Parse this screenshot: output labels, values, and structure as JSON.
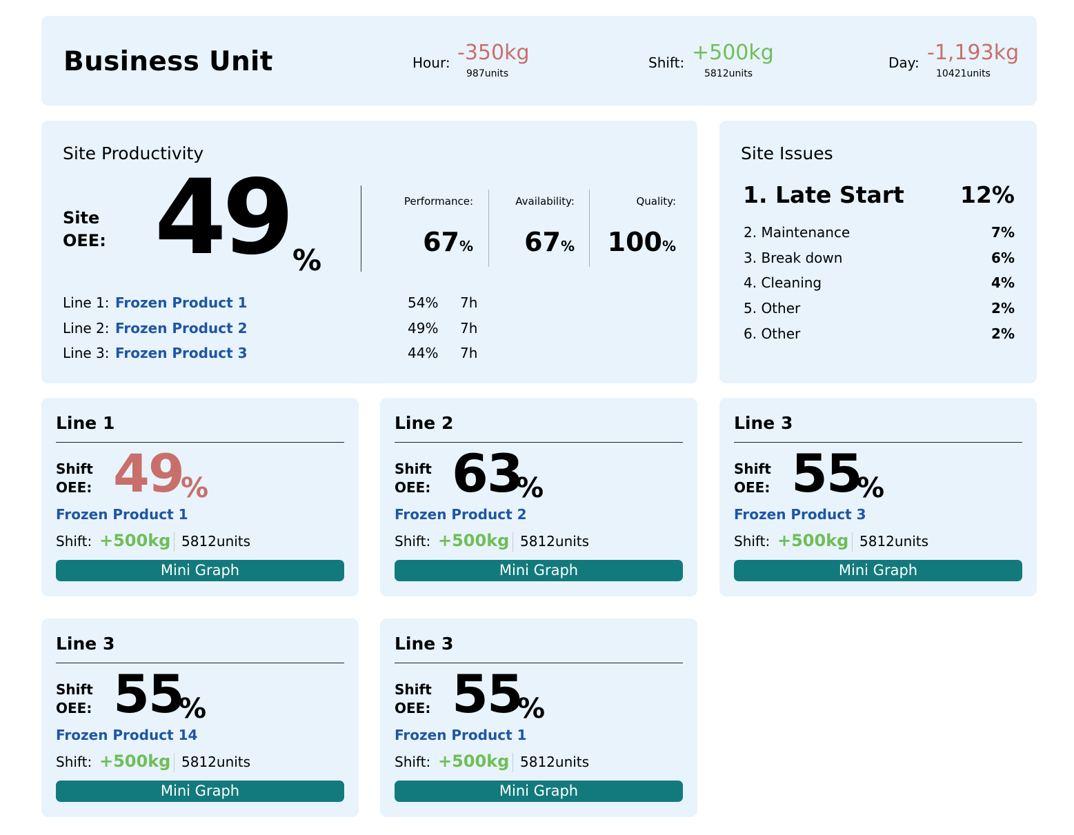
{
  "header": {
    "title": "Business Unit",
    "hour": {
      "label": "Hour:",
      "value": "-350kg",
      "units": "987units"
    },
    "shift": {
      "label": "Shift:",
      "value": "+500kg",
      "units": "5812units"
    },
    "day": {
      "label": "Day:",
      "value": "-1,193kg",
      "units": "10421units"
    }
  },
  "site_productivity": {
    "title": "Site Productivity",
    "oee_label_1": "Site",
    "oee_label_2": "OEE:",
    "oee_value": "49",
    "oee_unit": "%",
    "performance": {
      "label": "Performance:",
      "value": "67",
      "unit": "%"
    },
    "availability": {
      "label": "Availability:",
      "value": "67",
      "unit": "%"
    },
    "quality": {
      "label": "Quality:",
      "value": "100",
      "unit": "%"
    },
    "lines": [
      {
        "label": "Line 1:",
        "product": "Frozen Product 1",
        "pct": "54%",
        "hours": "7h"
      },
      {
        "label": "Line 2:",
        "product": "Frozen Product 2",
        "pct": "49%",
        "hours": "7h"
      },
      {
        "label": "Line 3:",
        "product": "Frozen Product 3",
        "pct": "44%",
        "hours": "7h"
      }
    ]
  },
  "site_issues": {
    "title": "Site Issues",
    "top": {
      "label": "1. Late Start",
      "pct": "12%"
    },
    "items": [
      {
        "label": "2. Maintenance",
        "pct": "7%"
      },
      {
        "label": "3. Break down",
        "pct": "6%"
      },
      {
        "label": "4. Cleaning",
        "pct": "4%"
      },
      {
        "label": "5. Other",
        "pct": "2%"
      },
      {
        "label": "6. Other",
        "pct": "2%"
      }
    ]
  },
  "cards": [
    {
      "title": "Line 1",
      "shift_label": "Shift",
      "oee_label": "OEE:",
      "oee": "49",
      "oee_unit": "%",
      "oee_color": "#c86f6c",
      "product": "Frozen Product 1",
      "shift_text": "Shift:",
      "shift_value": "+500kg",
      "units": "5812units",
      "button": "Mini Graph"
    },
    {
      "title": "Line 2",
      "shift_label": "Shift",
      "oee_label": "OEE:",
      "oee": "63",
      "oee_unit": "%",
      "oee_color": "#000000",
      "product": "Frozen Product 2",
      "shift_text": "Shift:",
      "shift_value": "+500kg",
      "units": "5812units",
      "button": "Mini Graph"
    },
    {
      "title": "Line 3",
      "shift_label": "Shift",
      "oee_label": "OEE:",
      "oee": "55",
      "oee_unit": "%",
      "oee_color": "#000000",
      "product": "Frozen Product 3",
      "shift_text": "Shift:",
      "shift_value": "+500kg",
      "units": "5812units",
      "button": "Mini Graph"
    },
    {
      "title": "Line 3",
      "shift_label": "Shift",
      "oee_label": "OEE:",
      "oee": "55",
      "oee_unit": "%",
      "oee_color": "#000000",
      "product": "Frozen Product 14",
      "shift_text": "Shift:",
      "shift_value": "+500kg",
      "units": "5812units",
      "button": "Mini Graph"
    },
    {
      "title": "Line 3",
      "shift_label": "Shift",
      "oee_label": "OEE:",
      "oee": "55",
      "oee_unit": "%",
      "oee_color": "#000000",
      "product": "Frozen Product 1",
      "shift_text": "Shift:",
      "shift_value": "+500kg",
      "units": "5812units",
      "button": "Mini Graph"
    }
  ],
  "colors": {
    "panel_bg": "#e8f3fc",
    "negative": "#c86f6c",
    "positive": "#6fbe58",
    "product_link": "#1f56a1",
    "button_bg": "#127a7c"
  }
}
